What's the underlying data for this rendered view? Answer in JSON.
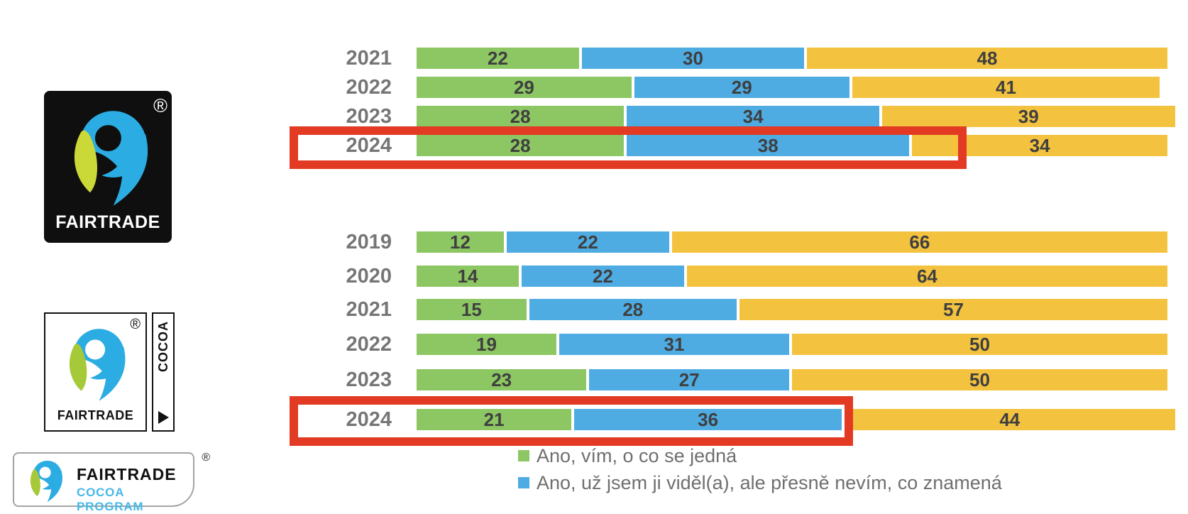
{
  "colors": {
    "green": "#8DC763",
    "blue": "#4EACE3",
    "yellow": "#F3C23F",
    "highlight_red": "#E23A23",
    "year_label": "#767676",
    "bar_value": "#3F3F3F",
    "legend_text": "#6F6F6F",
    "logo_blue": "#2BACE2",
    "logo_leaf_green_dark_bg": "#CBD938",
    "logo_leaf_green_light_bg": "#A6C939",
    "cocoa_program_blue": "#45B8E8"
  },
  "logos": {
    "fairtrade_mark": {
      "label": "FAIRTRADE",
      "registered": "®"
    },
    "fairtrade_cocoa": {
      "label": "FAIRTRADE",
      "side_label": "COCOA",
      "registered": "®"
    },
    "fairtrade_cocoa_program": {
      "line1": "FAIRTRADE",
      "line2": "COCOA PROGRAM",
      "registered": "®"
    }
  },
  "chart_data": {
    "type": "bar",
    "orientation": "horizontal",
    "stacked": true,
    "unit": "percent",
    "xlim": [
      0,
      100
    ],
    "grid": false,
    "legend_position": "bottom",
    "series_names": [
      "Ano, vím, o co se jedná",
      "Ano, už jsem ji viděl(a), ale přesně nevím, co znamená",
      ""
    ],
    "groups": [
      {
        "name": "fairtrade-mark-awareness",
        "rows": [
          {
            "year": "2021",
            "values": [
              22,
              30,
              48
            ],
            "highlighted": false
          },
          {
            "year": "2022",
            "values": [
              29,
              29,
              41
            ],
            "highlighted": false
          },
          {
            "year": "2023",
            "values": [
              28,
              34,
              39
            ],
            "highlighted": false
          },
          {
            "year": "2024",
            "values": [
              28,
              38,
              34
            ],
            "highlighted": true
          }
        ]
      },
      {
        "name": "fairtrade-cocoa-awareness",
        "rows": [
          {
            "year": "2019",
            "values": [
              12,
              22,
              66
            ],
            "highlighted": false
          },
          {
            "year": "2020",
            "values": [
              14,
              22,
              64
            ],
            "highlighted": false
          },
          {
            "year": "2021",
            "values": [
              15,
              28,
              57
            ],
            "highlighted": false
          },
          {
            "year": "2022",
            "values": [
              19,
              31,
              50
            ],
            "highlighted": false
          },
          {
            "year": "2023",
            "values": [
              23,
              27,
              50
            ],
            "highlighted": false
          },
          {
            "year": "2024",
            "values": [
              21,
              36,
              44
            ],
            "highlighted": true
          }
        ]
      }
    ]
  },
  "legend": {
    "items": [
      {
        "label": "Ano, vím, o co se jedná",
        "color_key": "green"
      },
      {
        "label": "Ano, už jsem ji viděl(a), ale přesně nevím, co znamená",
        "color_key": "blue"
      }
    ]
  }
}
